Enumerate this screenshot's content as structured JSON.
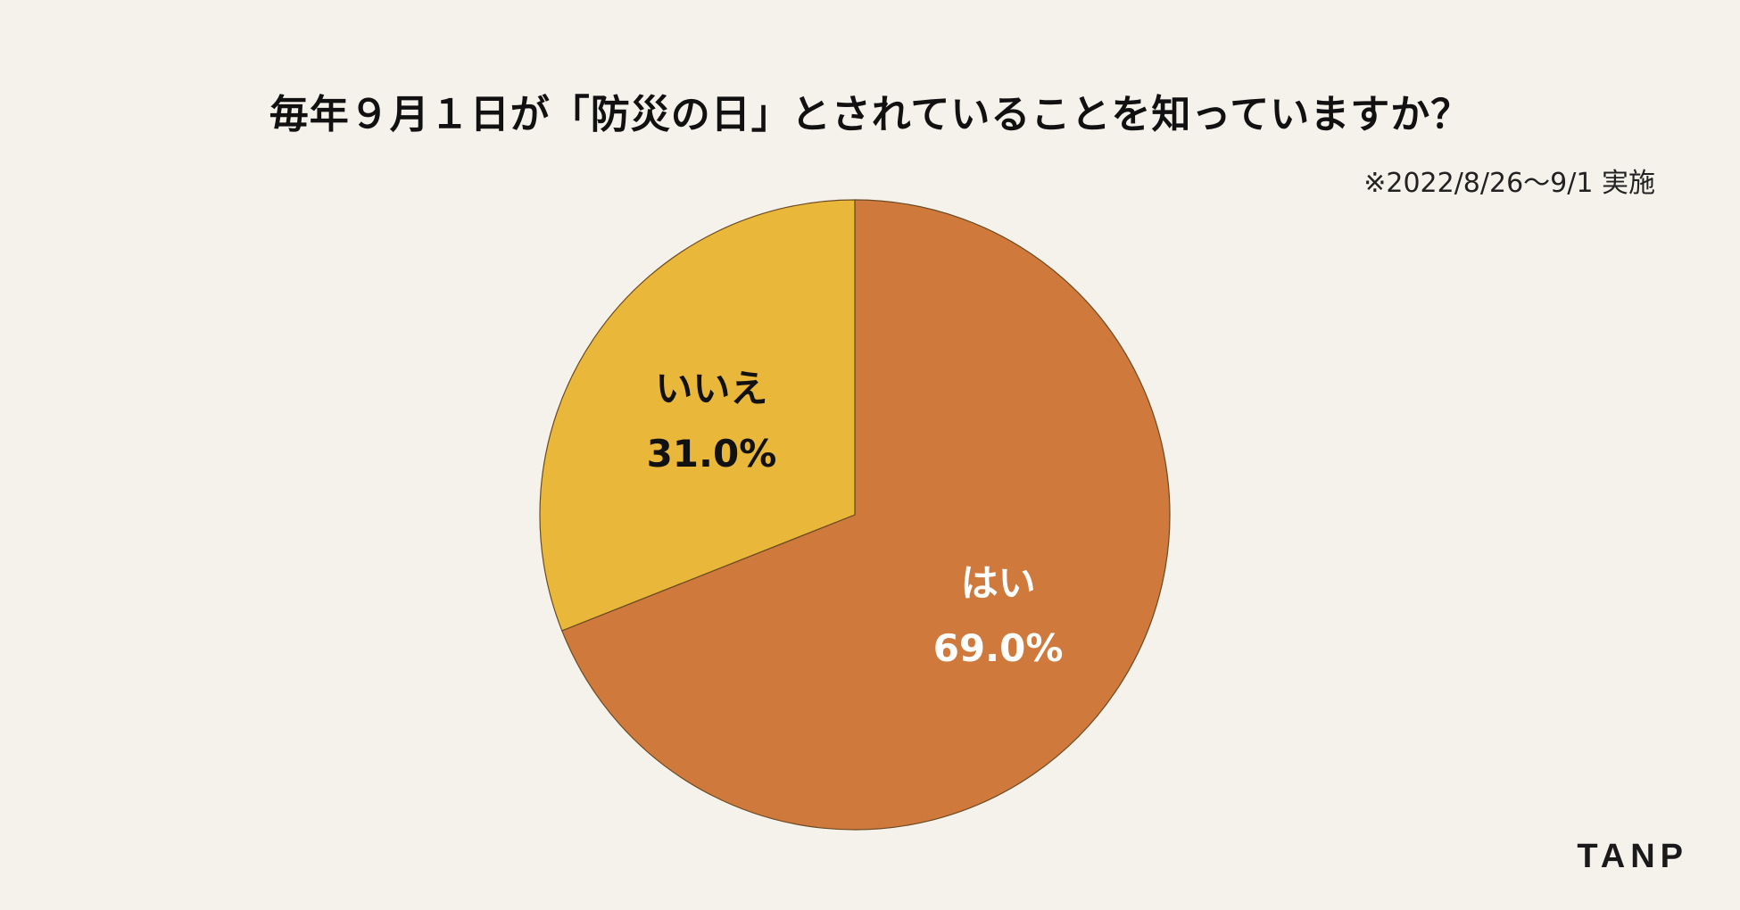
{
  "chart_data": {
    "type": "pie",
    "title": "毎年９月１日が「防災の日」とされていることを知っていますか？",
    "note": "※2022/8/26〜9/1 実施",
    "slices": [
      {
        "label": "はい",
        "value": 69.0,
        "display": "69.0%",
        "color": "#cf7a3c",
        "label_color": "#ffffff"
      },
      {
        "label": "いいえ",
        "value": 31.0,
        "display": "31.0%",
        "color": "#e9b83a",
        "label_color": "#111111"
      }
    ],
    "start_angle": "12 o'clock",
    "direction": "clockwise"
  },
  "brand": {
    "logo_text": "TANP"
  }
}
